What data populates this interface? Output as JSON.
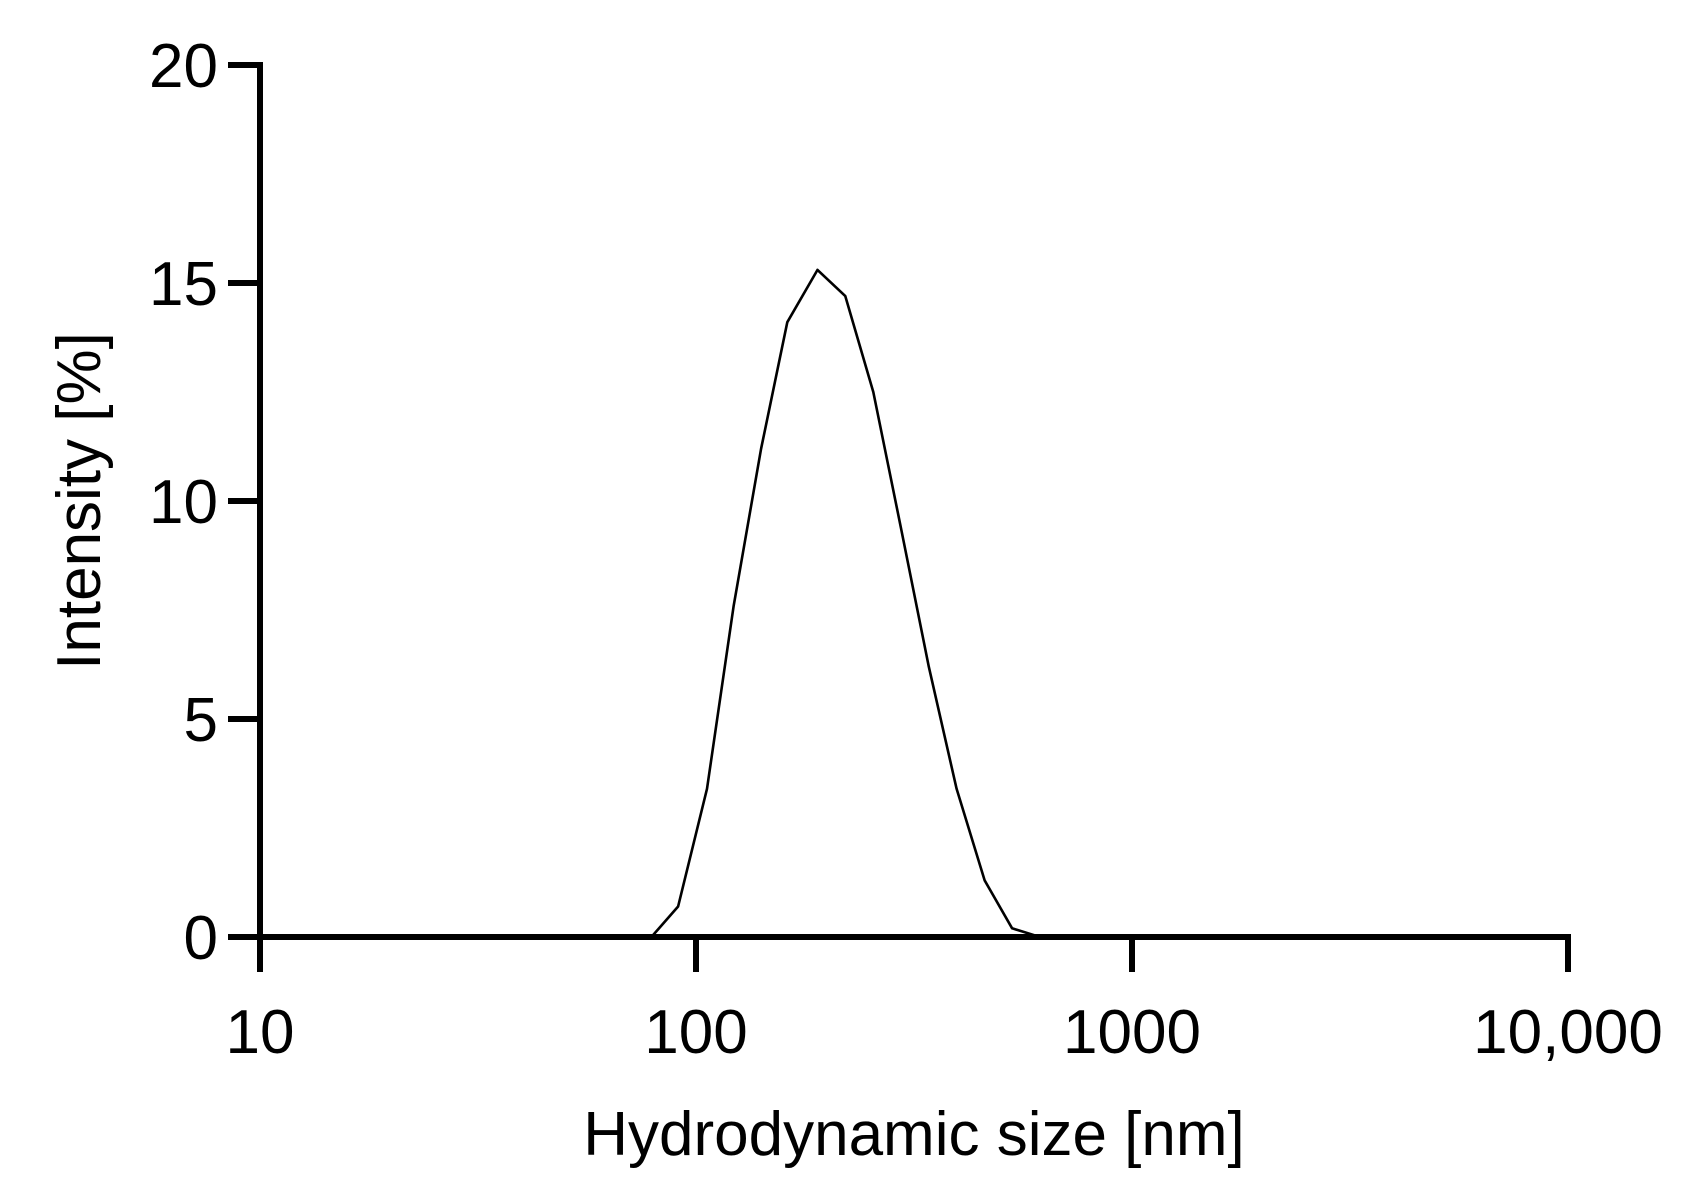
{
  "chart_data": {
    "type": "line",
    "xlabel": "Hydrodynamic size [nm]",
    "ylabel": "Intensity [%]",
    "xscale": "log",
    "xlim": [
      10,
      10000
    ],
    "ylim": [
      0,
      20
    ],
    "x_ticks": [
      10,
      100,
      1000,
      10000
    ],
    "x_tick_labels": [
      "10",
      "100",
      "1000",
      "10,000"
    ],
    "y_ticks": [
      0,
      5,
      10,
      15,
      20
    ],
    "y_tick_labels": [
      "0",
      "5",
      "10",
      "15",
      "20"
    ],
    "grid": false,
    "legend": "none",
    "series": [
      {
        "color": "#000000",
        "x": [
          10,
          79,
          91,
          106,
          122,
          141,
          162,
          190,
          220,
          255,
          295,
          342,
          396,
          459,
          531,
          615,
          10000
        ],
        "y": [
          0,
          0,
          0.7,
          3.4,
          7.6,
          11.2,
          14.1,
          15.3,
          14.7,
          12.5,
          9.4,
          6.2,
          3.4,
          1.3,
          0.2,
          0,
          0
        ]
      }
    ]
  }
}
